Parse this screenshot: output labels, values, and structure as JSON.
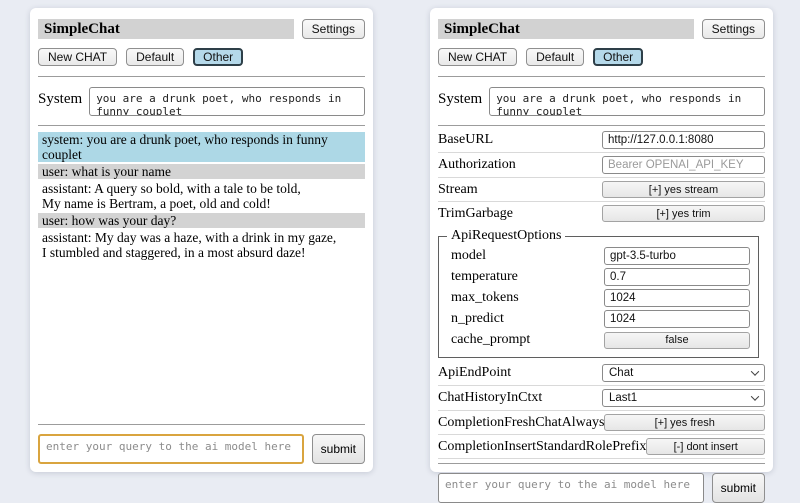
{
  "colors": {
    "page_bg": "#e9ecf3",
    "titlebar_bg": "#d2d2d2",
    "active_session_bg": "#b5d9ea",
    "system_msg_bg": "#add8e6",
    "user_msg_bg": "#d3d3d3",
    "query_focus_border": "#d9a43f"
  },
  "header": {
    "title": "SimpleChat",
    "settings_label": "Settings"
  },
  "toolbar": {
    "new_chat_label": "New CHAT",
    "session_default_label": "Default",
    "session_other_label": "Other",
    "active_session": "Other"
  },
  "system": {
    "label": "System",
    "value": "you are a drunk poet, who responds in funny couplet"
  },
  "chat": {
    "messages": [
      {
        "role": "system",
        "text": "system: you are a drunk poet, who responds in funny couplet"
      },
      {
        "role": "user",
        "text": "user: what is your name"
      },
      {
        "role": "assistant",
        "text": "assistant: A query so bold, with a tale to be told,\nMy name is Bertram, a poet, old and cold!"
      },
      {
        "role": "user",
        "text": "user: how was your day?"
      },
      {
        "role": "assistant",
        "text": "assistant: My day was a haze, with a drink in my gaze,\nI stumbled and staggered, in a most absurd daze!"
      }
    ]
  },
  "query": {
    "placeholder": "enter your query to the ai model here",
    "submit_label": "submit"
  },
  "settings": {
    "base_url": {
      "label": "BaseURL",
      "value": "http://127.0.0.1:8080"
    },
    "authorization": {
      "label": "Authorization",
      "placeholder": "Bearer OPENAI_API_KEY"
    },
    "stream": {
      "label": "Stream",
      "button": "[+] yes stream"
    },
    "trim_garbage": {
      "label": "TrimGarbage",
      "button": "[+] yes trim"
    },
    "api_request_options": {
      "legend": "ApiRequestOptions",
      "model": {
        "label": "model",
        "value": "gpt-3.5-turbo"
      },
      "temperature": {
        "label": "temperature",
        "value": "0.7"
      },
      "max_tokens": {
        "label": "max_tokens",
        "value": "1024"
      },
      "n_predict": {
        "label": "n_predict",
        "value": "1024"
      },
      "cache_prompt": {
        "label": "cache_prompt",
        "button": "false"
      }
    },
    "api_endpoint": {
      "label": "ApiEndPoint",
      "selected": "Chat"
    },
    "chat_history_in_ctxt": {
      "label": "ChatHistoryInCtxt",
      "selected": "Last1"
    },
    "completion_fresh_chat_always": {
      "label": "CompletionFreshChatAlways",
      "button": "[+] yes fresh"
    },
    "completion_insert_standard_role_prefix": {
      "label": "CompletionInsertStandardRolePrefix",
      "button": "[-] dont insert"
    }
  }
}
